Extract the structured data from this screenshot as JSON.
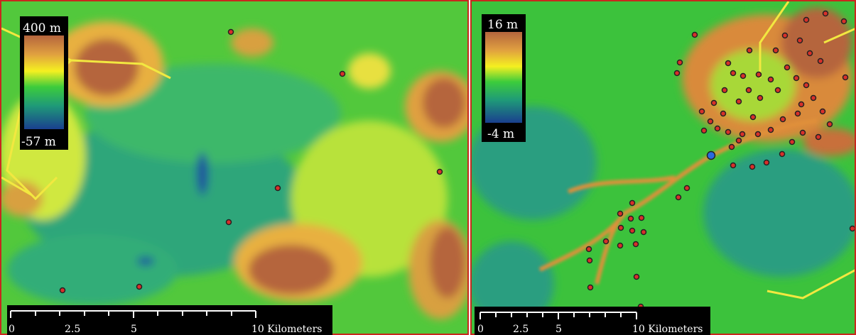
{
  "panels": [
    {
      "legend": {
        "max": "400 m",
        "min": "-57 m"
      },
      "scale_bar": {
        "labels": [
          "0",
          "2.5",
          "5",
          "10 Kilometers"
        ]
      }
    },
    {
      "legend": {
        "max": "16 m",
        "min": "-4 m"
      },
      "scale_bar": {
        "labels": [
          "0",
          "2.5",
          "5",
          "10 Kilometers"
        ]
      }
    }
  ]
}
